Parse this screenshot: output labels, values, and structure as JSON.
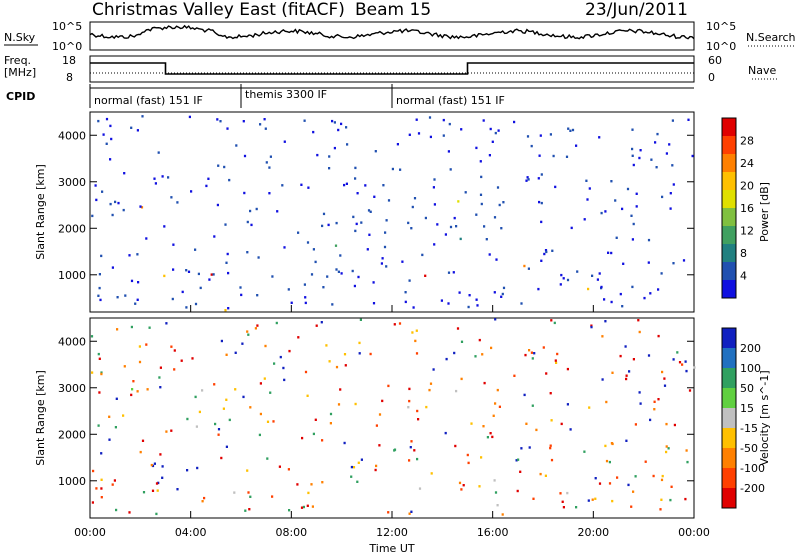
{
  "header": {
    "station": "Christmas Valley East (fitACF)",
    "beam": "Beam 15",
    "date": "23/Jun/2011"
  },
  "left_labels": {
    "nsky": "N.Sky",
    "nsky_hi": "10^5",
    "nsky_lo": "10^0",
    "freq": "Freq.",
    "freq_unit": "[MHz]",
    "freq_hi": "18",
    "freq_lo": "8",
    "cpid": "CPID"
  },
  "right_labels": {
    "nsearch": "N.Search",
    "nsearch_hi": "10^5",
    "nsearch_lo": "10^0",
    "nave": "Nave",
    "nave_hi": "60",
    "nave_lo": "0"
  },
  "cpid_segments": [
    {
      "label": "normal (fast) 151 IF",
      "start_h": 0,
      "end_h": 6
    },
    {
      "label": "themis 3300 IF",
      "start_h": 6,
      "end_h": 12
    },
    {
      "label": "normal (fast) 151 IF",
      "start_h": 12,
      "end_h": 24
    }
  ],
  "chart_data": [
    {
      "type": "heatmap",
      "name": "power",
      "ylabel": "Slant Range [km]",
      "ylim": [
        200,
        4500
      ],
      "yticks": [
        1000,
        2000,
        3000,
        4000
      ],
      "xlim": [
        0,
        24
      ],
      "colorbar": {
        "label": "Power [dB]",
        "ticks": [
          "28",
          "24",
          "20",
          "16",
          "12",
          "8",
          "4"
        ],
        "colors": [
          "#e00000",
          "#ff4000",
          "#ff8000",
          "#ffc000",
          "#e0e000",
          "#80c040",
          "#40a060",
          "#208080",
          "#2050b0",
          "#1010e0"
        ]
      }
    },
    {
      "type": "heatmap",
      "name": "velocity",
      "ylabel": "Slant Range [km]",
      "ylim": [
        200,
        4500
      ],
      "yticks": [
        1000,
        2000,
        3000,
        4000
      ],
      "xlim": [
        0,
        24
      ],
      "xlabel": "Time UT",
      "xticks": [
        "00:00",
        "04:00",
        "08:00",
        "12:00",
        "16:00",
        "20:00",
        "00:00"
      ],
      "colorbar": {
        "label": "Velocity [m s^-1]",
        "ticks": [
          "200",
          "100",
          "50",
          "15",
          "-15",
          "-50",
          "-100",
          "-200"
        ],
        "colors": [
          "#1020c0",
          "#2070c0",
          "#30a060",
          "#60d040",
          "#c0c0c0",
          "#ffc000",
          "#ff8000",
          "#ff4000",
          "#e00000"
        ]
      }
    }
  ],
  "freq_trace": [
    {
      "start_h": 0,
      "end_h": 3,
      "level": "high"
    },
    {
      "start_h": 3,
      "end_h": 15,
      "level": "low"
    },
    {
      "start_h": 15,
      "end_h": 24,
      "level": "high"
    }
  ]
}
